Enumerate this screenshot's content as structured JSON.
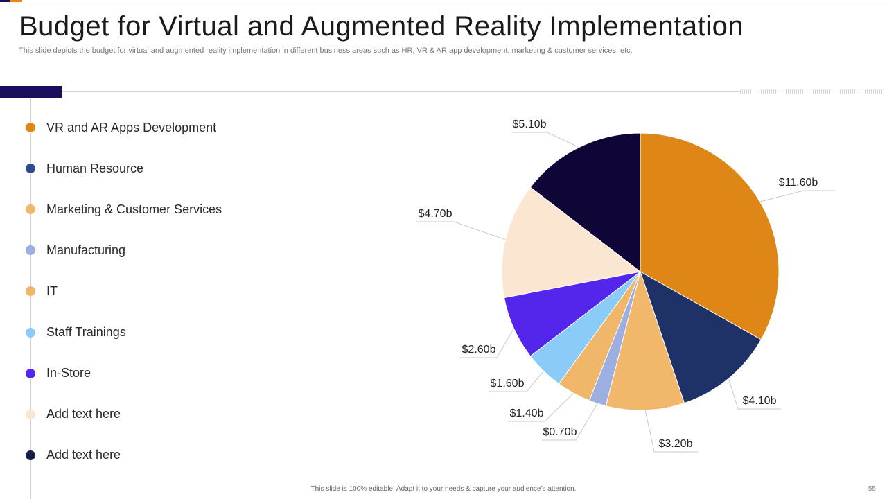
{
  "slide": {
    "title": "Budget for Virtual and Augmented Reality Implementation",
    "subtitle": "This slide depicts the budget for virtual and augmented reality implementation in different business areas such as HR, VR & AR  app development, marketing & customer services, etc.",
    "footer": "This slide is 100% editable.  Adapt it to your needs & capture your audience’s attention.",
    "page_number": "55"
  },
  "colors": {
    "accent_navy": "#1a0f5e",
    "accent_orange": "#e08a15"
  },
  "chart_data": {
    "type": "pie",
    "title": "",
    "start": "12 o'clock, clockwise",
    "slices": [
      {
        "label": "VR and AR Apps Development",
        "value": 11.6,
        "value_label": "$11.60b",
        "color": "#df8716"
      },
      {
        "label": "Human Resource",
        "value": 4.1,
        "value_label": "$4.10b",
        "color": "#1f3268"
      },
      {
        "label": "Marketing & Customer Services",
        "value": 3.2,
        "value_label": "$3.20b",
        "color": "#f1b76b"
      },
      {
        "label": "Manufacturing",
        "value": 0.7,
        "value_label": "$0.70b",
        "color": "#9daee0"
      },
      {
        "label": "IT",
        "value": 1.4,
        "value_label": "$1.40b",
        "color": "#f0b66a"
      },
      {
        "label": "Staff Trainings",
        "value": 1.6,
        "value_label": "$1.60b",
        "color": "#8bcbf7"
      },
      {
        "label": "In-Store",
        "value": 2.6,
        "value_label": "$2.60b",
        "color": "#5425ea"
      },
      {
        "label": "Add text here",
        "value": 4.7,
        "value_label": "$4.70b",
        "color": "#fbe7d1"
      },
      {
        "label": "Add text here",
        "value": 5.1,
        "value_label": "$5.10b",
        "color": "#0f0637"
      }
    ],
    "legend_colors": [
      "#df8716",
      "#2c4a8c",
      "#f1b76b",
      "#9daee0",
      "#f0b66a",
      "#8bcbf7",
      "#5425ea",
      "#fbe7d1",
      "#15204a"
    ]
  }
}
